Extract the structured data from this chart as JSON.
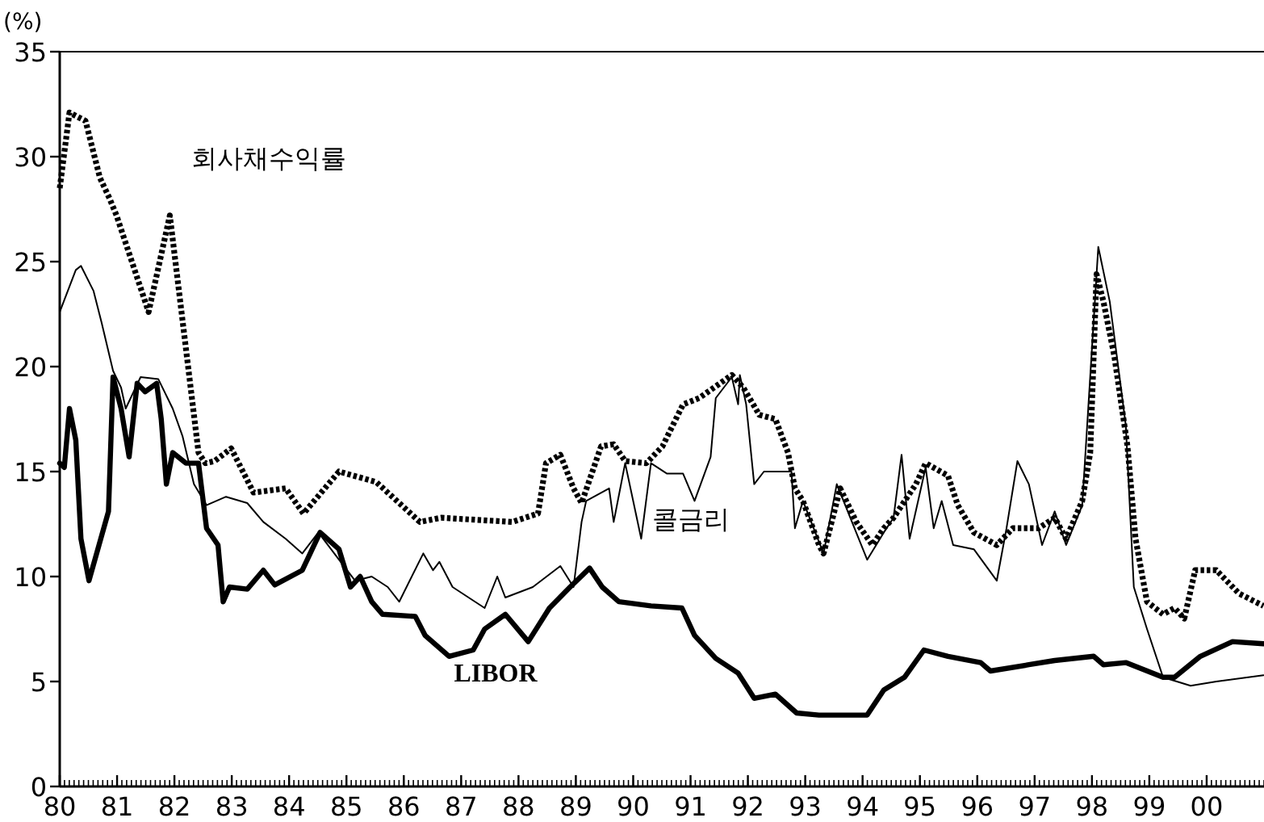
{
  "chart_data": {
    "type": "line",
    "ylabel": "(%)",
    "xlim": [
      1980,
      2001
    ],
    "ylim": [
      0,
      35
    ],
    "xticks": [
      {
        "value": 1980,
        "label": "80"
      },
      {
        "value": 1981,
        "label": "81"
      },
      {
        "value": 1982,
        "label": "82"
      },
      {
        "value": 1983,
        "label": "83"
      },
      {
        "value": 1984,
        "label": "84"
      },
      {
        "value": 1985,
        "label": "85"
      },
      {
        "value": 1986,
        "label": "86"
      },
      {
        "value": 1987,
        "label": "87"
      },
      {
        "value": 1988,
        "label": "88"
      },
      {
        "value": 1989,
        "label": "89"
      },
      {
        "value": 1990,
        "label": "90"
      },
      {
        "value": 1991,
        "label": "91"
      },
      {
        "value": 1992,
        "label": "92"
      },
      {
        "value": 1993,
        "label": "93"
      },
      {
        "value": 1994,
        "label": "94"
      },
      {
        "value": 1995,
        "label": "95"
      },
      {
        "value": 1996,
        "label": "96"
      },
      {
        "value": 1997,
        "label": "97"
      },
      {
        "value": 1998,
        "label": "98"
      },
      {
        "value": 1999,
        "label": "99"
      },
      {
        "value": 2000,
        "label": "00"
      }
    ],
    "yticks": [
      0,
      5,
      10,
      15,
      20,
      25,
      30,
      35
    ],
    "series": [
      {
        "name": "회사채수익률",
        "color": "#000000",
        "line_style": "dotted",
        "x": [
          1980.0,
          1980.17,
          1980.45,
          1980.7,
          1980.87,
          1980.99,
          1981.55,
          1981.92,
          1982.42,
          1982.54,
          1982.7,
          1982.99,
          1983.38,
          1983.94,
          1984.25,
          1984.87,
          1985.52,
          1986.08,
          1986.28,
          1986.65,
          1987.89,
          1988.34,
          1988.48,
          1988.73,
          1988.96,
          1989.1,
          1989.44,
          1989.66,
          1989.86,
          1990.23,
          1990.51,
          1990.87,
          1991.15,
          1991.72,
          1991.92,
          1992.2,
          1992.48,
          1992.7,
          1992.82,
          1992.96,
          1993.24,
          1993.32,
          1993.61,
          1993.89,
          1994.17,
          1994.37,
          1994.54,
          1994.93,
          1995.1,
          1995.49,
          1995.66,
          1995.94,
          1996.34,
          1996.62,
          1997.07,
          1997.35,
          1997.55,
          1997.83,
          1997.97,
          1998.08,
          1998.2,
          1998.39,
          1998.62,
          1998.76,
          1998.96,
          1999.24,
          1999.44,
          1999.61,
          1999.8,
          2000.17,
          2000.56,
          2000.99
        ],
        "values": [
          28.5,
          32.1,
          31.7,
          29,
          28,
          27.2,
          22.6,
          27.2,
          15.9,
          15.4,
          15.5,
          16.1,
          14,
          14.2,
          13,
          15,
          14.5,
          13.1,
          12.6,
          12.8,
          12.6,
          13,
          15.4,
          15.8,
          14.2,
          13.5,
          16.2,
          16.3,
          15.5,
          15.4,
          16.2,
          18.2,
          18.5,
          19.6,
          19,
          17.7,
          17.5,
          15.9,
          14.2,
          13.6,
          11.5,
          11.1,
          14.2,
          12.6,
          11.5,
          12.3,
          12.8,
          14.4,
          15.4,
          14.8,
          13.4,
          12.1,
          11.5,
          12.3,
          12.3,
          12.8,
          11.8,
          13.6,
          15.9,
          24.4,
          23.1,
          20.5,
          16.2,
          11.8,
          8.8,
          8.2,
          8.5,
          8,
          10.3,
          10.3,
          9.2,
          8.6
        ]
      },
      {
        "name": "콜금리",
        "color": "#000000",
        "line_style": "solid",
        "x": [
          1980.0,
          1980.28,
          1980.37,
          1980.59,
          1980.73,
          1980.93,
          1981.07,
          1981.15,
          1981.41,
          1981.72,
          1981.97,
          1982.14,
          1982.34,
          1982.56,
          1982.9,
          1983.27,
          1983.55,
          1983.94,
          1984.23,
          1984.51,
          1984.87,
          1985.15,
          1985.44,
          1985.72,
          1985.92,
          1986.34,
          1986.51,
          1986.62,
          1986.85,
          1987.41,
          1987.63,
          1987.77,
          1988.25,
          1988.73,
          1988.96,
          1989.1,
          1989.18,
          1989.58,
          1989.66,
          1989.86,
          1990.14,
          1990.31,
          1990.59,
          1990.87,
          1991.07,
          1991.35,
          1991.44,
          1991.72,
          1991.83,
          1991.86,
          1991.97,
          1992.11,
          1992.28,
          1992.76,
          1992.82,
          1992.96,
          1993.32,
          1993.55,
          1994.08,
          1994.37,
          1994.54,
          1994.68,
          1994.82,
          1995.1,
          1995.24,
          1995.38,
          1995.58,
          1995.94,
          1996.34,
          1996.51,
          1996.7,
          1996.9,
          1997.13,
          1997.35,
          1997.55,
          1997.83,
          1998.11,
          1998.31,
          1998.59,
          1998.73,
          1998.96,
          1999.24,
          1999.72,
          2000.17,
          2000.99
        ],
        "values": [
          22.6,
          24.6,
          24.8,
          23.6,
          22.1,
          19.8,
          19,
          18,
          19.5,
          19.4,
          18,
          16.7,
          14.4,
          13.4,
          13.8,
          13.5,
          12.6,
          11.8,
          11.1,
          12.1,
          10.8,
          9.8,
          10,
          9.5,
          8.8,
          11.1,
          10.3,
          10.7,
          9.5,
          8.5,
          10,
          9,
          9.5,
          10.5,
          9.5,
          12.6,
          13.6,
          14.2,
          12.6,
          15.4,
          11.8,
          15.4,
          14.9,
          14.9,
          13.6,
          15.7,
          18.5,
          19.5,
          18.2,
          19.6,
          18.2,
          14.4,
          15,
          15,
          12.3,
          13.6,
          11.1,
          14.4,
          10.8,
          12.1,
          12.8,
          15.8,
          11.8,
          15.2,
          12.3,
          13.6,
          11.5,
          11.3,
          9.8,
          12.3,
          15.5,
          14.4,
          11.5,
          13.1,
          11.5,
          13.4,
          25.7,
          23.1,
          17.2,
          9.5,
          7.5,
          5.2,
          4.8,
          5,
          5.3
        ]
      },
      {
        "name": "LIBOR",
        "color": "#000000",
        "line_style": "solid",
        "x": [
          1980.0,
          1980.08,
          1980.17,
          1980.28,
          1980.37,
          1980.51,
          1980.85,
          1980.93,
          1981.07,
          1981.21,
          1981.35,
          1981.49,
          1981.69,
          1981.77,
          1981.86,
          1981.97,
          1982.2,
          1982.42,
          1982.56,
          1982.76,
          1982.85,
          1982.96,
          1983.27,
          1983.55,
          1983.75,
          1984.23,
          1984.54,
          1984.87,
          1985.07,
          1985.24,
          1985.44,
          1985.63,
          1986.2,
          1986.37,
          1986.79,
          1987.21,
          1987.41,
          1987.77,
          1988.17,
          1988.54,
          1988.9,
          1989.24,
          1989.46,
          1989.75,
          1990.31,
          1990.85,
          1991.07,
          1991.44,
          1991.83,
          1992.11,
          1992.48,
          1992.85,
          1993.24,
          1993.69,
          1994.08,
          1994.37,
          1994.73,
          1995.07,
          1995.49,
          1996.06,
          1996.23,
          1996.9,
          1997.35,
          1998.03,
          1998.2,
          1998.59,
          1999.24,
          1999.44,
          1999.89,
          2000.45,
          2000.99
        ],
        "values": [
          15.4,
          15.2,
          18,
          16.5,
          11.8,
          9.8,
          13.1,
          19.5,
          18,
          15.7,
          19.2,
          18.8,
          19.2,
          17.5,
          14.4,
          15.9,
          15.4,
          15.4,
          12.3,
          11.5,
          8.8,
          9.5,
          9.4,
          10.3,
          9.6,
          10.3,
          12.1,
          11.3,
          9.5,
          10,
          8.8,
          8.2,
          8.1,
          7.2,
          6.2,
          6.5,
          7.5,
          8.2,
          6.9,
          8.5,
          9.5,
          10.4,
          9.5,
          8.8,
          8.6,
          8.5,
          7.2,
          6.1,
          5.4,
          4.2,
          4.4,
          3.5,
          3.4,
          3.4,
          3.4,
          4.6,
          5.2,
          6.5,
          6.2,
          5.9,
          5.5,
          5.8,
          6,
          6.2,
          5.8,
          5.9,
          5.2,
          5.2,
          6.2,
          6.9,
          6.8
        ]
      }
    ]
  }
}
